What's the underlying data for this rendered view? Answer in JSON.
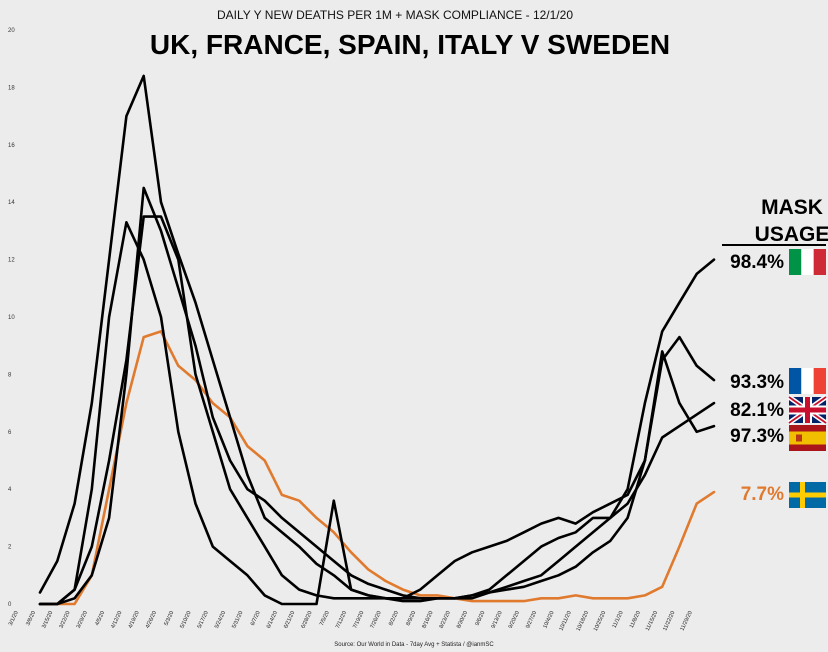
{
  "chart_data": {
    "type": "line",
    "subtitle": "DAILY Y NEW DEATHS PER 1M + MASK COMPLIANCE - 12/1/20",
    "title": "UK, FRANCE, SPAIN, ITALY V SWEDEN",
    "source": "Source: Our World in Data - 7day Avg + Statista / @ianmSC",
    "ylim": [
      0,
      20
    ],
    "yticks": [
      0,
      2,
      4,
      6,
      8,
      10,
      12,
      14,
      16,
      18,
      20
    ],
    "xticks": [
      "3/1/20",
      "3/8/20",
      "3/15/20",
      "3/22/20",
      "3/29/20",
      "4/5/20",
      "4/12/20",
      "4/19/20",
      "4/26/20",
      "5/3/20",
      "5/10/20",
      "5/17/20",
      "5/24/20",
      "5/31/20",
      "6/7/20",
      "6/14/20",
      "6/21/20",
      "6/28/20",
      "7/5/20",
      "7/12/20",
      "7/19/20",
      "7/26/20",
      "8/2/20",
      "8/9/20",
      "8/16/20",
      "8/23/20",
      "8/30/20",
      "9/6/20",
      "9/13/20",
      "9/20/20",
      "9/27/20",
      "10/4/20",
      "10/11/20",
      "10/18/20",
      "10/25/20",
      "11/1/20",
      "11/8/20",
      "11/15/20",
      "11/22/20",
      "11/29/20"
    ],
    "legend_header": [
      "MASK",
      "USAGE"
    ],
    "series": [
      {
        "name": "Italy",
        "mask_usage": "98.4%",
        "flag": "italy-flag",
        "color": "#000000",
        "values": [
          0.4,
          1.5,
          3.5,
          7,
          12,
          17,
          18.4,
          14,
          12.2,
          10.5,
          8.5,
          6.5,
          4.5,
          3,
          2.5,
          2,
          1.4,
          1,
          0.5,
          0.3,
          0.2,
          0.2,
          0.2,
          0.2,
          0.2,
          0.2,
          0.4,
          0.6,
          0.8,
          1,
          1.5,
          2,
          2.5,
          3,
          4,
          7,
          9.5,
          10.5,
          11.5,
          12
        ]
      },
      {
        "name": "France",
        "mask_usage": "93.3%",
        "flag": "france-flag",
        "color": "#000000",
        "values": [
          0,
          0,
          0.5,
          2,
          5,
          8.5,
          13.5,
          13.5,
          12,
          8,
          6,
          4,
          3,
          2,
          1,
          0.5,
          0.3,
          0.2,
          0.2,
          0.2,
          0.2,
          0.1,
          0.1,
          0.2,
          0.2,
          0.3,
          0.4,
          0.5,
          0.6,
          0.8,
          1,
          1.3,
          1.8,
          2.2,
          3,
          5,
          8.5,
          9.3,
          8.3,
          7.8
        ]
      },
      {
        "name": "UK",
        "mask_usage": "82.1%",
        "flag": "uk-flag",
        "color": "#000000",
        "values": [
          0,
          0,
          0.2,
          1,
          3,
          8,
          14.5,
          13,
          11,
          9,
          6.5,
          5,
          4,
          3.6,
          3,
          2.5,
          2,
          1.5,
          1,
          0.7,
          0.5,
          0.3,
          0.2,
          0.2,
          0.2,
          0.3,
          0.5,
          1,
          1.5,
          2,
          2.3,
          2.5,
          3,
          3,
          3.5,
          4.5,
          5.8,
          6.2,
          6.6,
          7
        ]
      },
      {
        "name": "Spain",
        "mask_usage": "97.3%",
        "flag": "spain-flag",
        "color": "#000000",
        "values": [
          0,
          0,
          0.5,
          4,
          10,
          13.3,
          12,
          10,
          6,
          3.5,
          2,
          1.5,
          1,
          0.3,
          0,
          0,
          0,
          3.6,
          0.5,
          0.3,
          0.2,
          0.2,
          0.5,
          1,
          1.5,
          1.8,
          2,
          2.2,
          2.5,
          2.8,
          3,
          2.8,
          3.2,
          3.5,
          3.8,
          5,
          8.8,
          7,
          6,
          6.2
        ]
      },
      {
        "name": "Sweden",
        "mask_usage": "7.7%",
        "flag": "sweden-flag",
        "color": "#e07a2e",
        "values": [
          0,
          0,
          0,
          1,
          4,
          7,
          9.3,
          9.5,
          8.3,
          7.8,
          7,
          6.5,
          5.5,
          5,
          3.8,
          3.6,
          3,
          2.5,
          1.8,
          1.2,
          0.8,
          0.5,
          0.3,
          0.3,
          0.2,
          0.1,
          0.1,
          0.1,
          0.1,
          0.2,
          0.2,
          0.3,
          0.2,
          0.2,
          0.2,
          0.3,
          0.6,
          2,
          3.5,
          3.9
        ]
      }
    ]
  },
  "colors": {
    "background": "#ececec",
    "line": "#000000",
    "sweden": "#e07a2e"
  }
}
